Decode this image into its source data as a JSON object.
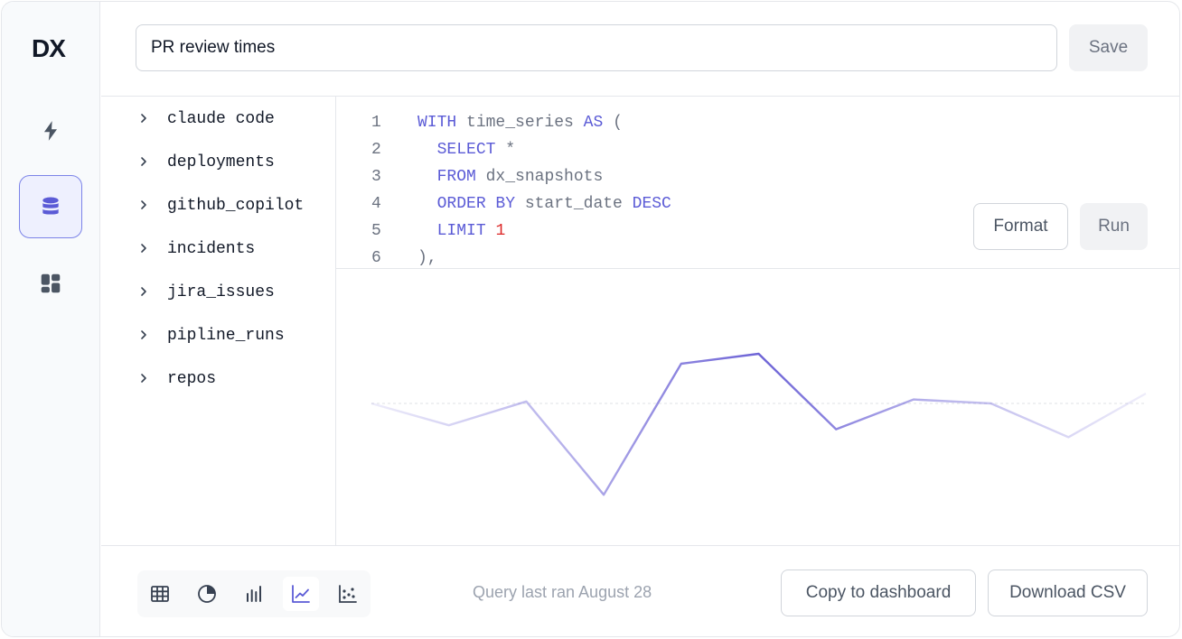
{
  "header": {
    "query_title": "PR review times",
    "save_label": "Save"
  },
  "nav": {
    "logo_text": "DX",
    "items": [
      {
        "name": "lightning-icon",
        "active": false
      },
      {
        "name": "database-icon",
        "active": true
      },
      {
        "name": "dashboard-icon",
        "active": false
      }
    ]
  },
  "tables": [
    {
      "label": "claude code"
    },
    {
      "label": "deployments"
    },
    {
      "label": "github_copilot"
    },
    {
      "label": "incidents"
    },
    {
      "label": "jira_issues"
    },
    {
      "label": "pipline_runs"
    },
    {
      "label": "repos"
    }
  ],
  "editor": {
    "lines": [
      {
        "n": "1",
        "tokens": [
          {
            "t": "WITH",
            "k": "kw"
          },
          {
            "t": " time_series ",
            "k": ""
          },
          {
            "t": "AS",
            "k": "kw"
          },
          {
            "t": " (",
            "k": ""
          }
        ]
      },
      {
        "n": "2",
        "tokens": [
          {
            "t": "  ",
            "k": ""
          },
          {
            "t": "SELECT",
            "k": "kw"
          },
          {
            "t": " *",
            "k": ""
          }
        ]
      },
      {
        "n": "3",
        "tokens": [
          {
            "t": "  ",
            "k": ""
          },
          {
            "t": "FROM",
            "k": "kw"
          },
          {
            "t": " dx_snapshots",
            "k": ""
          }
        ]
      },
      {
        "n": "4",
        "tokens": [
          {
            "t": "  ",
            "k": ""
          },
          {
            "t": "ORDER BY",
            "k": "kw"
          },
          {
            "t": " start_date ",
            "k": ""
          },
          {
            "t": "DESC",
            "k": "kw"
          }
        ]
      },
      {
        "n": "5",
        "tokens": [
          {
            "t": "  ",
            "k": ""
          },
          {
            "t": "LIMIT",
            "k": "kw"
          },
          {
            "t": " ",
            "k": ""
          },
          {
            "t": "1",
            "k": "num"
          }
        ]
      },
      {
        "n": "6",
        "tokens": [
          {
            "t": "),",
            "k": ""
          }
        ]
      }
    ],
    "format_label": "Format",
    "run_label": "Run"
  },
  "chart_data": {
    "type": "line",
    "x": [
      0,
      1,
      2,
      3,
      4,
      5,
      6,
      7,
      8,
      9,
      10
    ],
    "series": [
      {
        "values": [
          0.0,
          -0.55,
          0.05,
          -2.3,
          1.0,
          1.25,
          -0.65,
          0.1,
          0.0,
          -0.85,
          0.25
        ]
      }
    ],
    "ylim": [
      -3,
      2
    ],
    "baseline": 0,
    "axes_visible": false,
    "color": "#6d63d6"
  },
  "footer": {
    "viz_types": [
      {
        "name": "table-view-icon",
        "active": false
      },
      {
        "name": "pie-chart-icon",
        "active": false
      },
      {
        "name": "bar-chart-icon",
        "active": false
      },
      {
        "name": "line-chart-icon",
        "active": true
      },
      {
        "name": "scatter-chart-icon",
        "active": false
      }
    ],
    "status_text": "Query last ran August 28",
    "copy_label": "Copy to dashboard",
    "download_label": "Download CSV"
  },
  "colors": {
    "accent": "#5b5bd6",
    "number": "#dc2626",
    "line": "#6d63d6"
  }
}
